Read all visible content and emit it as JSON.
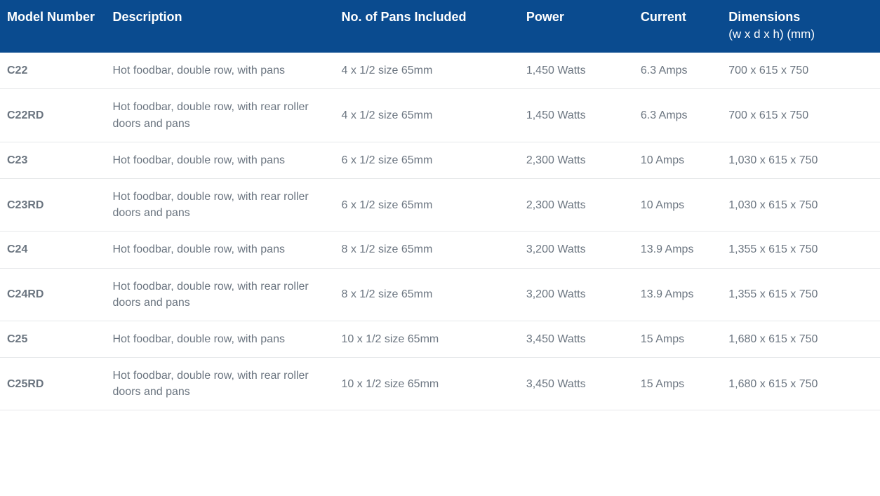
{
  "table": {
    "header_bg": "#0a4b8f",
    "header_text_color": "#ffffff",
    "body_text_color": "#6b7580",
    "row_border_color": "#e6e8ea",
    "header_fontsize": 18,
    "body_fontsize": 16,
    "columns": [
      {
        "key": "model",
        "label": "Model Number",
        "width": "12%"
      },
      {
        "key": "description",
        "label": "Description",
        "width": "26%"
      },
      {
        "key": "pans",
        "label": "No. of Pans Included",
        "width": "21%"
      },
      {
        "key": "power",
        "label": "Power",
        "width": "13%"
      },
      {
        "key": "current",
        "label": "Current",
        "width": "10%"
      },
      {
        "key": "dimensions",
        "label": "Dimensions",
        "sublabel": "(w x d x h) (mm)",
        "width": "18%"
      }
    ],
    "rows": [
      {
        "model": "C22",
        "description": "Hot foodbar, double row, with pans",
        "pans": "4 x 1/2 size 65mm",
        "power": "1,450 Watts",
        "current": "6.3 Amps",
        "dimensions": "700 x 615 x 750"
      },
      {
        "model": "C22RD",
        "description": "Hot foodbar, double row, with rear roller doors and pans",
        "pans": "4 x 1/2 size 65mm",
        "power": "1,450 Watts",
        "current": "6.3 Amps",
        "dimensions": "700 x 615 x 750"
      },
      {
        "model": "C23",
        "description": "Hot foodbar, double row, with pans",
        "pans": "6 x 1/2 size 65mm",
        "power": "2,300 Watts",
        "current": "10 Amps",
        "dimensions": "1,030 x 615 x 750"
      },
      {
        "model": "C23RD",
        "description": "Hot foodbar, double row, with rear roller doors and pans",
        "pans": "6 x 1/2 size 65mm",
        "power": "2,300 Watts",
        "current": "10 Amps",
        "dimensions": "1,030 x 615 x 750"
      },
      {
        "model": "C24",
        "description": "Hot foodbar, double row, with pans",
        "pans": "8 x 1/2 size 65mm",
        "power": "3,200 Watts",
        "current": "13.9 Amps",
        "dimensions": "1,355 x 615 x 750"
      },
      {
        "model": "C24RD",
        "description": "Hot foodbar, double row, with rear roller doors and pans",
        "pans": "8 x 1/2 size 65mm",
        "power": "3,200 Watts",
        "current": "13.9 Amps",
        "dimensions": "1,355 x 615 x 750"
      },
      {
        "model": "C25",
        "description": "Hot foodbar, double row, with pans",
        "pans": "10 x 1/2 size 65mm",
        "power": "3,450 Watts",
        "current": "15 Amps",
        "dimensions": "1,680 x 615 x 750"
      },
      {
        "model": "C25RD",
        "description": "Hot foodbar, double row, with rear roller doors and pans",
        "pans": "10 x 1/2 size 65mm",
        "power": "3,450 Watts",
        "current": "15 Amps",
        "dimensions": "1,680 x 615 x 750"
      }
    ]
  }
}
